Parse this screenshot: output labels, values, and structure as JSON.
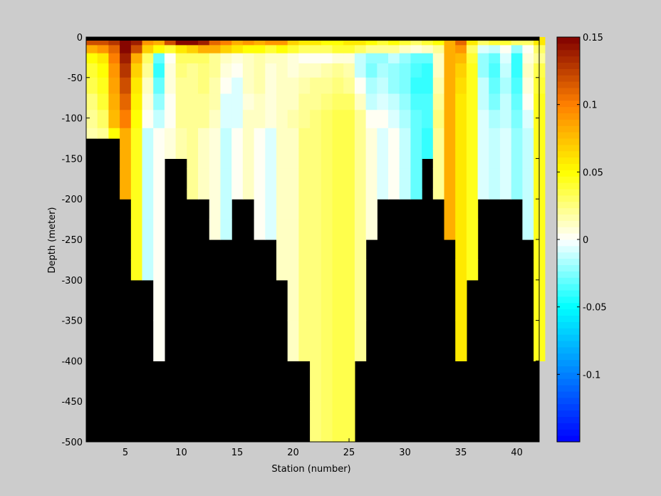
{
  "figure": {
    "background": "#cccccc",
    "mask_color": "#000000"
  },
  "chart_data": {
    "type": "heatmap",
    "xlabel": "Station (number)",
    "ylabel": "Depth (meter)",
    "xlim": [
      1.5,
      42
    ],
    "ylim": [
      -500,
      0
    ],
    "x_ticks": [
      5,
      10,
      15,
      20,
      25,
      30,
      35,
      40
    ],
    "x_tick_labels": [
      "5",
      "10",
      "15",
      "20",
      "25",
      "30",
      "35",
      "40"
    ],
    "y_ticks": [
      0,
      -50,
      -100,
      -150,
      -200,
      -250,
      -300,
      -350,
      -400,
      -450,
      -500
    ],
    "y_tick_labels": [
      "0",
      "-50",
      "-100",
      "-150",
      "-200",
      "-250",
      "-300",
      "-350",
      "-400",
      "-450",
      "-500"
    ],
    "stations": [
      2,
      3,
      4,
      5,
      6,
      7,
      8,
      9,
      10,
      11,
      12,
      13,
      14,
      15,
      16,
      17,
      18,
      19,
      20,
      21,
      22,
      23,
      24,
      25,
      26,
      27,
      28,
      29,
      30,
      31,
      32,
      33,
      34,
      35,
      36,
      37,
      38,
      39,
      40,
      41,
      42
    ],
    "depth_levels": [
      -5,
      -15,
      -25,
      -40,
      -60,
      -80,
      -100,
      -125,
      -150,
      -175,
      -200,
      -250,
      -300,
      -400,
      -500
    ],
    "station_max_depth": [
      -125,
      -125,
      -125,
      -200,
      -300,
      -300,
      -400,
      -150,
      -150,
      -200,
      -200,
      -250,
      -250,
      -200,
      -200,
      -250,
      -250,
      -300,
      -400,
      -400,
      -500,
      -500,
      -500,
      -500,
      -400,
      -250,
      -200,
      -200,
      -200,
      -200,
      -150,
      -200,
      -250,
      -400,
      -300,
      -200,
      -200,
      -200,
      -200,
      -250,
      -400
    ],
    "station_profiles": [
      [
        0.12,
        0.08,
        0.05,
        0.04,
        0.035,
        0.025,
        0.02,
        0.015
      ],
      [
        0.12,
        0.09,
        0.06,
        0.05,
        0.045,
        0.04,
        0.03,
        0.02
      ],
      [
        0.13,
        0.11,
        0.1,
        0.09,
        0.085,
        0.08,
        0.075,
        0.05
      ],
      [
        0.15,
        0.15,
        0.14,
        0.13,
        0.12,
        0.11,
        0.1,
        0.08
      ],
      [
        0.14,
        0.12,
        0.08,
        0.07,
        0.06,
        0.055,
        0.05,
        0.045
      ],
      [
        0.09,
        0.07,
        0.03,
        0.02,
        0.01,
        0.005,
        0.0,
        -0.01
      ],
      [
        0.08,
        0.05,
        -0.03,
        -0.04,
        -0.03,
        -0.02,
        -0.01,
        0.0
      ],
      [
        0.12,
        0.04,
        0.0,
        0.005,
        0.005,
        0.0,
        0.0,
        0.005
      ],
      [
        0.15,
        0.06,
        0.03,
        0.025,
        0.02,
        0.02,
        0.02,
        0.015
      ],
      [
        0.15,
        0.07,
        0.03,
        0.02,
        0.02,
        0.02,
        0.02,
        0.02
      ],
      [
        0.14,
        0.08,
        0.03,
        0.025,
        0.025,
        0.02,
        0.02,
        0.01
      ],
      [
        0.11,
        0.08,
        0.02,
        0.02,
        0.015,
        0.015,
        0.01,
        0.005
      ],
      [
        0.1,
        0.07,
        0.01,
        0.005,
        0.0,
        -0.005,
        -0.005,
        -0.01
      ],
      [
        0.08,
        0.06,
        0.005,
        0.0,
        -0.005,
        -0.005,
        -0.005,
        0.0
      ],
      [
        0.09,
        0.05,
        0.01,
        0.01,
        0.01,
        0.005,
        0.01,
        0.01
      ],
      [
        0.08,
        0.05,
        0.015,
        0.015,
        0.015,
        0.01,
        0.01,
        0.0
      ],
      [
        0.09,
        0.04,
        0.01,
        0.005,
        0.005,
        0.005,
        0.005,
        -0.005
      ],
      [
        0.09,
        0.05,
        0.01,
        0.01,
        0.01,
        0.01,
        0.01,
        0.01
      ],
      [
        0.07,
        0.04,
        0.005,
        0.005,
        0.01,
        0.01,
        0.015,
        0.01
      ],
      [
        0.06,
        0.03,
        0.0,
        0.01,
        0.015,
        0.02,
        0.02,
        0.025
      ],
      [
        0.06,
        0.03,
        0.0,
        0.01,
        0.02,
        0.02,
        0.025,
        0.025
      ],
      [
        0.05,
        0.03,
        0.0,
        0.015,
        0.02,
        0.025,
        0.03,
        0.03
      ],
      [
        0.05,
        0.04,
        0.005,
        0.02,
        0.025,
        0.03,
        0.035,
        0.035
      ],
      [
        0.06,
        0.04,
        0.005,
        0.015,
        0.02,
        0.03,
        0.035,
        0.035
      ],
      [
        0.06,
        0.03,
        -0.01,
        -0.01,
        0.0,
        0.01,
        0.02,
        0.02
      ],
      [
        0.05,
        0.02,
        -0.02,
        -0.025,
        -0.015,
        -0.01,
        0.0,
        0.005
      ],
      [
        0.04,
        0.02,
        -0.02,
        -0.015,
        -0.01,
        -0.005,
        0.0,
        -0.005
      ],
      [
        0.05,
        0.02,
        -0.01,
        -0.02,
        -0.02,
        -0.01,
        -0.005,
        0.0
      ],
      [
        0.04,
        0.01,
        -0.02,
        -0.025,
        -0.025,
        -0.02,
        -0.015,
        -0.01
      ],
      [
        0.03,
        0.005,
        -0.03,
        -0.035,
        -0.04,
        -0.035,
        -0.03,
        -0.03
      ],
      [
        0.04,
        0.01,
        -0.03,
        -0.04,
        -0.04,
        -0.035,
        -0.035,
        -0.04
      ],
      [
        0.05,
        0.02,
        0.01,
        0.01,
        0.015,
        0.02,
        0.025,
        0.02
      ],
      [
        0.08,
        0.08,
        0.08,
        0.08,
        0.08,
        0.08,
        0.08,
        0.08
      ],
      [
        0.11,
        0.09,
        0.075,
        0.07,
        0.065,
        0.06,
        0.06,
        0.06
      ],
      [
        0.06,
        0.03,
        0.04,
        0.045,
        0.045,
        0.045,
        0.045,
        0.045
      ],
      [
        0.03,
        -0.005,
        -0.02,
        -0.02,
        -0.01,
        -0.01,
        -0.005,
        -0.005
      ],
      [
        0.04,
        -0.01,
        -0.03,
        -0.035,
        -0.03,
        -0.025,
        -0.015,
        -0.01
      ],
      [
        0.04,
        0.0,
        -0.005,
        -0.01,
        -0.015,
        -0.01,
        -0.01,
        -0.005
      ],
      [
        0.03,
        -0.02,
        -0.04,
        -0.04,
        -0.035,
        -0.03,
        -0.025,
        -0.02
      ],
      [
        0.03,
        0.0,
        0.005,
        0.01,
        0.005,
        0.0,
        -0.005,
        -0.01
      ],
      [
        0.06,
        0.03,
        0.02,
        0.035,
        0.04,
        0.045,
        0.045,
        0.045
      ]
    ],
    "colorbar": {
      "range": [
        -0.15,
        0.15
      ],
      "ticks": [
        0.15,
        0.1,
        0.05,
        0,
        -0.05,
        -0.1
      ],
      "tick_labels": [
        "0.15",
        "0.1",
        "0.05",
        "0",
        "-0.05",
        "-0.1"
      ],
      "levels": 64,
      "colormap_stops": [
        {
          "v": 0.0,
          "c": "#0000ff"
        },
        {
          "v": 0.333,
          "c": "#00ffff"
        },
        {
          "v": 0.5,
          "c": "#ffffff"
        },
        {
          "v": 0.667,
          "c": "#ffff00"
        },
        {
          "v": 0.833,
          "c": "#ff8000"
        },
        {
          "v": 1.0,
          "c": "#800000"
        }
      ]
    }
  }
}
